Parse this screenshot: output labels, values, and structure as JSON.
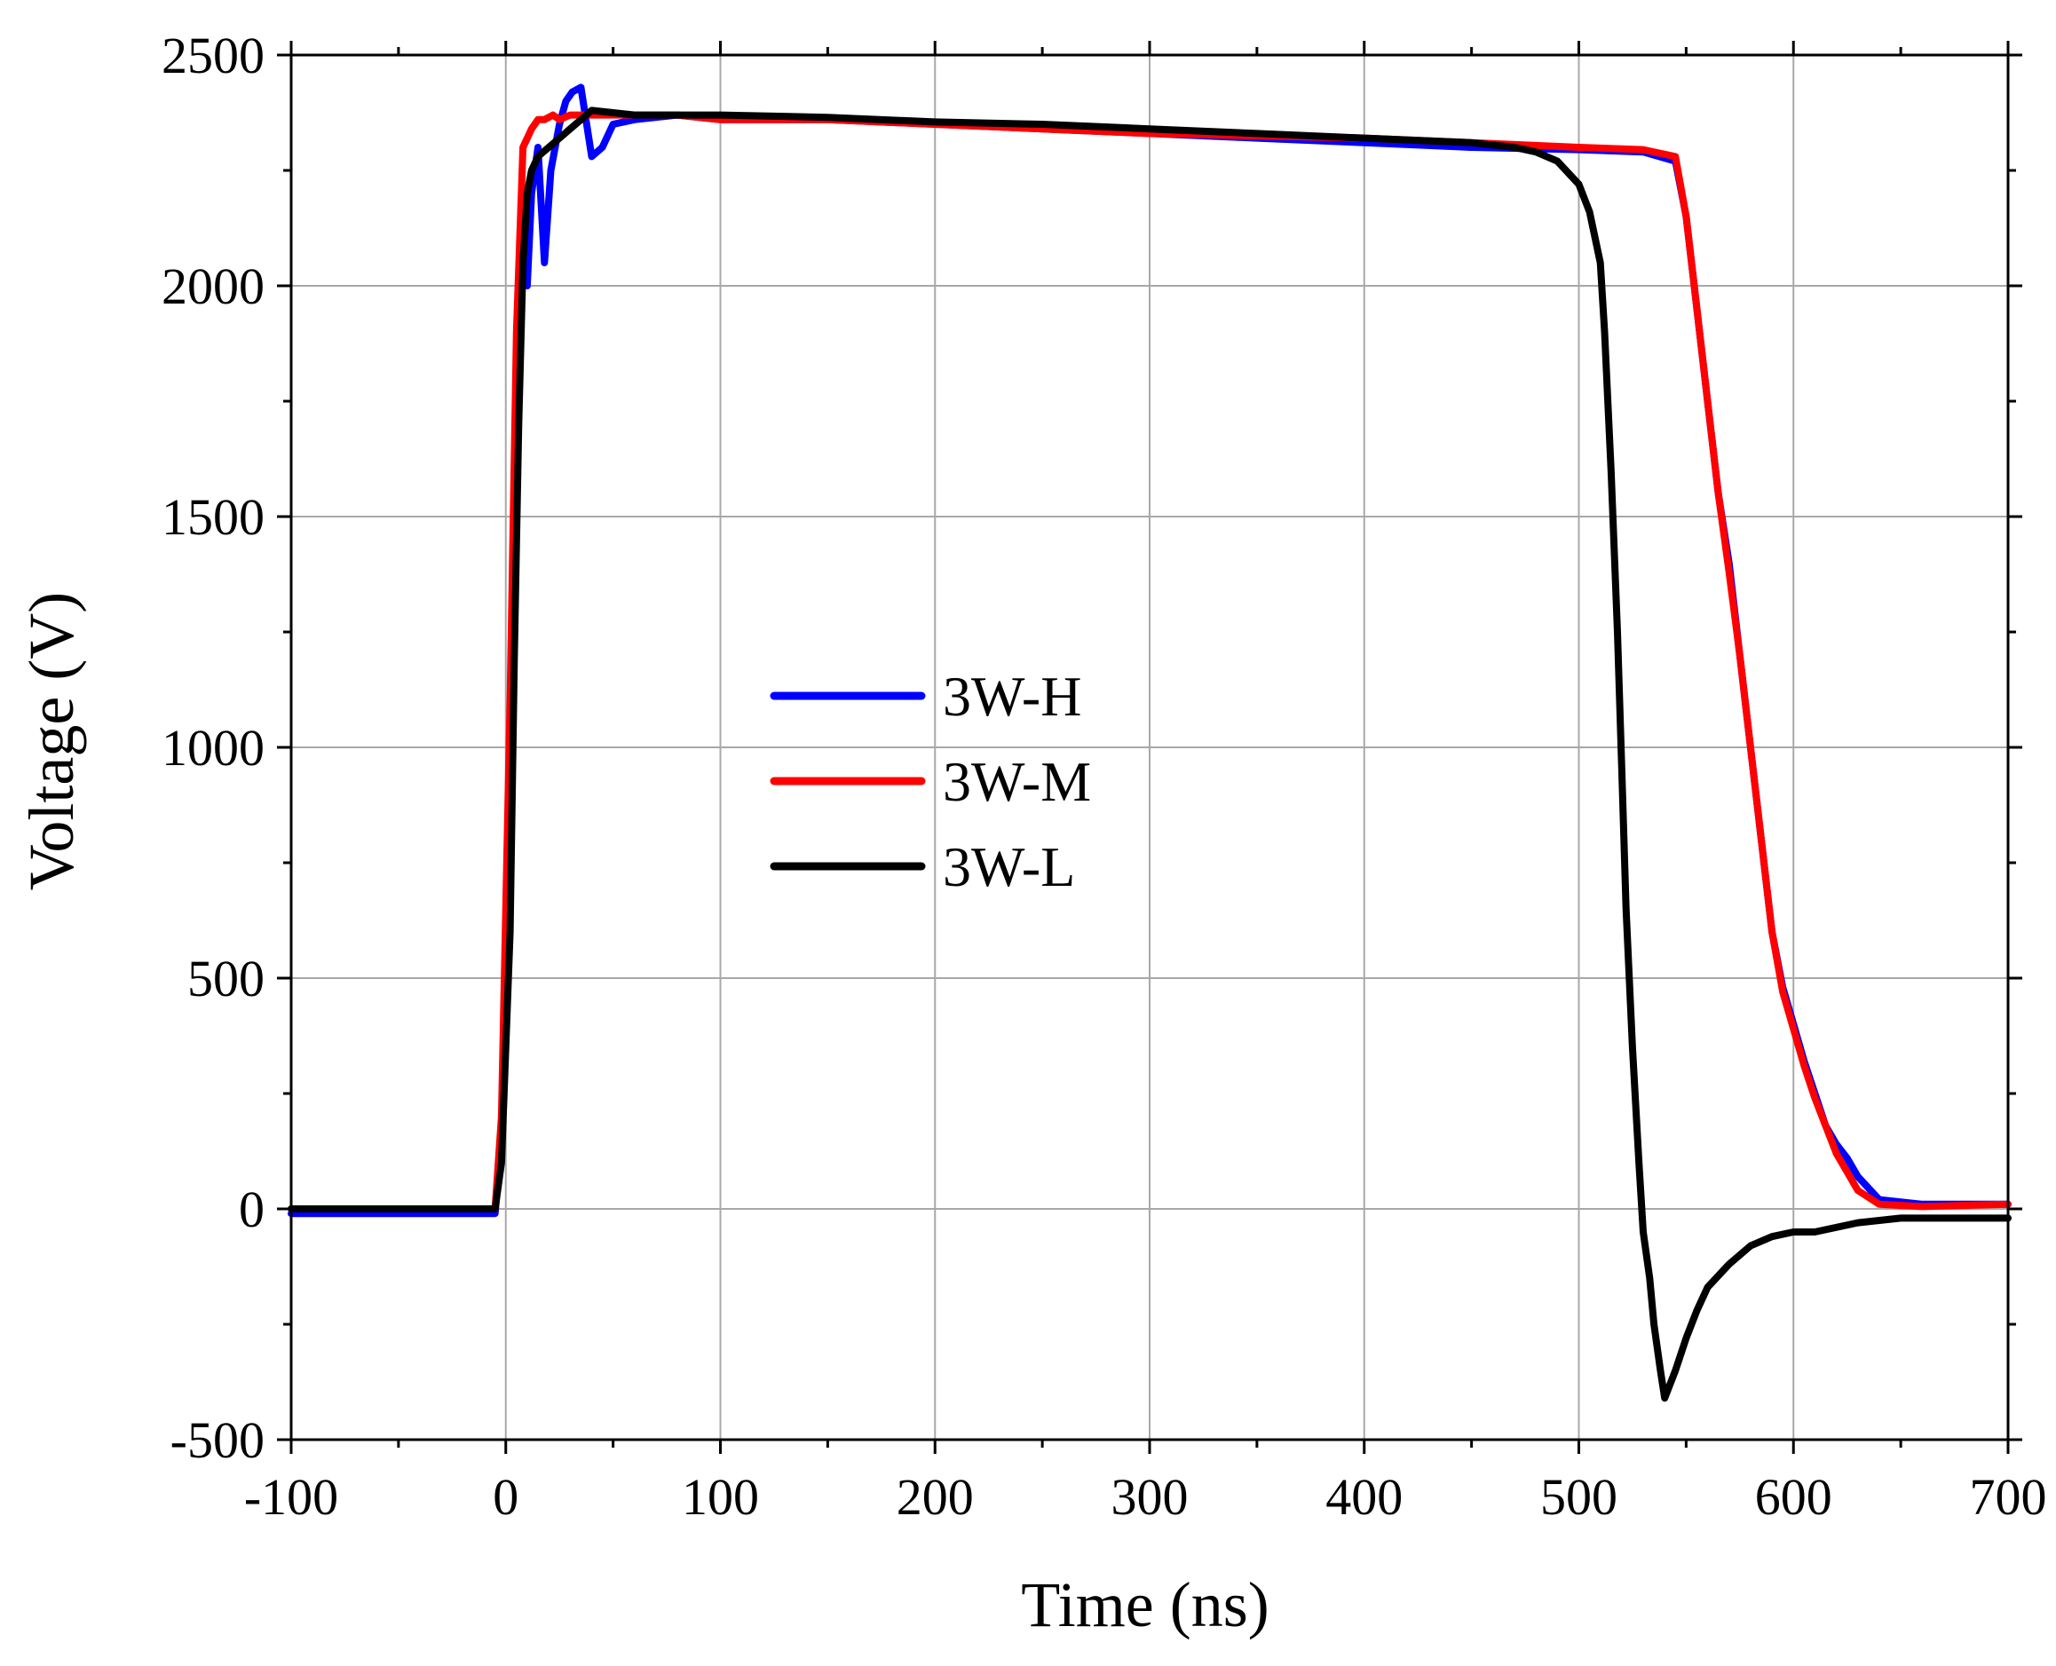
{
  "chart_data": {
    "type": "line",
    "title": "",
    "xlabel": "Time (ns)",
    "ylabel": "Voltage (V)",
    "xlim": [
      -100,
      700
    ],
    "ylim": [
      -500,
      2500
    ],
    "xticks": [
      -100,
      0,
      100,
      200,
      300,
      400,
      500,
      600,
      700
    ],
    "yticks": [
      -500,
      0,
      500,
      1000,
      1500,
      2000,
      2500
    ],
    "grid": true,
    "legend_position": "center-left",
    "series": [
      {
        "name": "3W-H",
        "color": "#0000ff",
        "x": [
          -100,
          -5,
          -2,
          2,
          5,
          8,
          10,
          12,
          15,
          18,
          21,
          25,
          28,
          31,
          35,
          40,
          45,
          50,
          60,
          80,
          100,
          150,
          200,
          250,
          300,
          350,
          400,
          450,
          500,
          530,
          545,
          550,
          555,
          560,
          565,
          570,
          575,
          580,
          585,
          590,
          595,
          600,
          605,
          610,
          615,
          620,
          625,
          630,
          640,
          660,
          700
        ],
        "y": [
          -10,
          -10,
          150,
          900,
          1700,
          2200,
          2000,
          2200,
          2300,
          2050,
          2250,
          2350,
          2400,
          2420,
          2430,
          2280,
          2300,
          2350,
          2360,
          2370,
          2360,
          2360,
          2350,
          2340,
          2330,
          2320,
          2310,
          2300,
          2295,
          2290,
          2270,
          2150,
          1950,
          1750,
          1550,
          1400,
          1200,
          1000,
          800,
          600,
          480,
          400,
          320,
          250,
          180,
          140,
          110,
          70,
          20,
          10,
          10
        ]
      },
      {
        "name": "3W-M",
        "color": "#ff0000",
        "x": [
          -100,
          -5,
          -2,
          2,
          5,
          8,
          12,
          15,
          18,
          22,
          25,
          30,
          40,
          60,
          80,
          100,
          150,
          200,
          250,
          300,
          350,
          400,
          450,
          500,
          530,
          545,
          550,
          555,
          560,
          565,
          570,
          575,
          580,
          585,
          590,
          595,
          600,
          605,
          610,
          615,
          620,
          625,
          630,
          640,
          660,
          700
        ],
        "y": [
          0,
          0,
          200,
          1100,
          1900,
          2300,
          2340,
          2360,
          2360,
          2370,
          2360,
          2370,
          2370,
          2370,
          2370,
          2360,
          2360,
          2350,
          2340,
          2330,
          2325,
          2320,
          2310,
          2300,
          2295,
          2280,
          2150,
          1950,
          1750,
          1550,
          1380,
          1200,
          1000,
          800,
          600,
          470,
          390,
          310,
          240,
          180,
          120,
          80,
          40,
          10,
          5,
          10
        ]
      },
      {
        "name": "3W-L",
        "color": "#000000",
        "x": [
          -100,
          -5,
          -2,
          2,
          4,
          6,
          8,
          10,
          12,
          15,
          20,
          25,
          30,
          35,
          40,
          50,
          60,
          80,
          100,
          150,
          200,
          250,
          300,
          350,
          400,
          450,
          470,
          480,
          490,
          500,
          505,
          510,
          512,
          515,
          518,
          520,
          522,
          525,
          528,
          530,
          533,
          535,
          538,
          540,
          545,
          550,
          555,
          560,
          570,
          580,
          590,
          600,
          610,
          630,
          650,
          680,
          700
        ],
        "y": [
          0,
          0,
          100,
          600,
          1200,
          1700,
          2050,
          2200,
          2250,
          2280,
          2300,
          2320,
          2340,
          2360,
          2380,
          2375,
          2370,
          2370,
          2370,
          2365,
          2355,
          2350,
          2340,
          2330,
          2320,
          2310,
          2300,
          2290,
          2270,
          2220,
          2160,
          2050,
          1900,
          1600,
          1250,
          950,
          650,
          350,
          100,
          -50,
          -150,
          -250,
          -350,
          -410,
          -350,
          -280,
          -220,
          -170,
          -120,
          -80,
          -60,
          -50,
          -50,
          -30,
          -20,
          -20,
          -20
        ]
      }
    ]
  }
}
